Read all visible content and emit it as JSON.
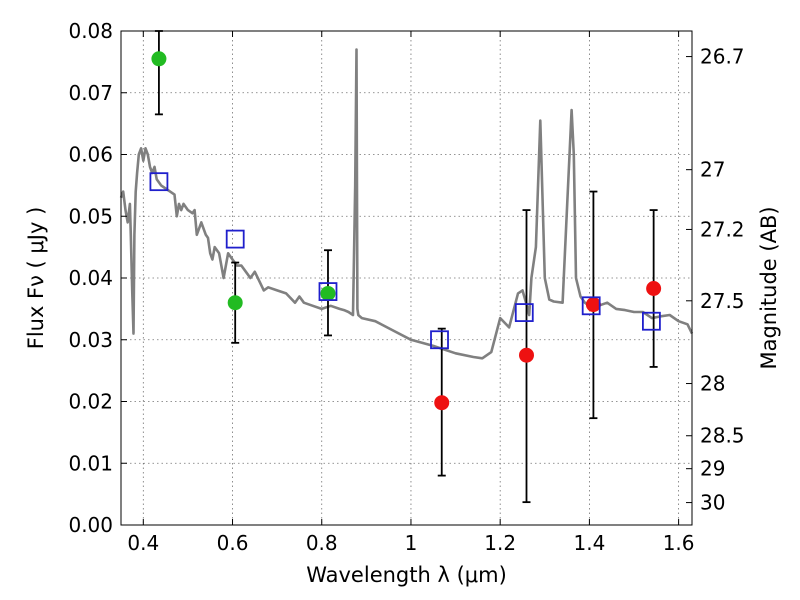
{
  "chart_data": {
    "type": "scatter",
    "title": "",
    "xlabel": "Wavelength  λ (μm)",
    "ylabel": "Flux  Fν ( μJy )",
    "y2label": "Magnitude (AB)",
    "xlim": [
      0.35,
      1.63
    ],
    "ylim": [
      0.0,
      0.08
    ],
    "grid": true,
    "x_ticks": [
      0.4,
      0.6,
      0.8,
      1.0,
      1.2,
      1.4,
      1.6
    ],
    "x_tick_labels": [
      "0.4",
      "0.6",
      "0.8",
      "1",
      "1.2",
      "1.4",
      "1.6"
    ],
    "y_ticks": [
      0.0,
      0.01,
      0.02,
      0.03,
      0.04,
      0.05,
      0.06,
      0.07,
      0.08
    ],
    "y_tick_labels": [
      "0.00",
      "0.01",
      "0.02",
      "0.03",
      "0.04",
      "0.05",
      "0.06",
      "0.07",
      "0.08"
    ],
    "y2_ticks": [
      26.7,
      27.0,
      27.2,
      27.5,
      28.0,
      28.5,
      29.0,
      30.0
    ],
    "y2_tick_labels": [
      "26.7",
      "27",
      "27.2",
      "27.5",
      "28",
      "28.5",
      "29",
      "30"
    ],
    "model_spectrum": {
      "color": "#808080",
      "x": [
        0.35,
        0.355,
        0.36,
        0.365,
        0.37,
        0.372,
        0.375,
        0.378,
        0.38,
        0.383,
        0.386,
        0.39,
        0.395,
        0.4,
        0.405,
        0.41,
        0.415,
        0.42,
        0.425,
        0.43,
        0.44,
        0.45,
        0.46,
        0.47,
        0.475,
        0.48,
        0.485,
        0.49,
        0.5,
        0.51,
        0.515,
        0.52,
        0.53,
        0.54,
        0.545,
        0.55,
        0.555,
        0.56,
        0.57,
        0.58,
        0.59,
        0.6,
        0.61,
        0.62,
        0.63,
        0.64,
        0.65,
        0.66,
        0.67,
        0.68,
        0.7,
        0.72,
        0.74,
        0.75,
        0.76,
        0.78,
        0.8,
        0.82,
        0.84,
        0.85,
        0.86,
        0.87,
        0.875,
        0.878,
        0.88,
        0.882,
        0.885,
        0.89,
        0.92,
        0.96,
        1.0,
        1.05,
        1.1,
        1.14,
        1.16,
        1.18,
        1.2,
        1.22,
        1.24,
        1.25,
        1.26,
        1.265,
        1.27,
        1.28,
        1.29,
        1.3,
        1.31,
        1.32,
        1.34,
        1.36,
        1.365,
        1.37,
        1.38,
        1.39,
        1.4,
        1.42,
        1.44,
        1.46,
        1.48,
        1.5,
        1.52,
        1.54,
        1.56,
        1.58,
        1.6,
        1.62,
        1.63
      ],
      "y": [
        0.053,
        0.054,
        0.051,
        0.049,
        0.052,
        0.047,
        0.038,
        0.031,
        0.047,
        0.054,
        0.057,
        0.06,
        0.061,
        0.059,
        0.061,
        0.06,
        0.058,
        0.057,
        0.058,
        0.056,
        0.055,
        0.0545,
        0.054,
        0.0535,
        0.05,
        0.052,
        0.051,
        0.052,
        0.051,
        0.0505,
        0.051,
        0.047,
        0.049,
        0.047,
        0.0465,
        0.044,
        0.043,
        0.045,
        0.044,
        0.04,
        0.044,
        0.043,
        0.042,
        0.042,
        0.041,
        0.04,
        0.041,
        0.0395,
        0.038,
        0.0385,
        0.038,
        0.0375,
        0.036,
        0.037,
        0.036,
        0.0355,
        0.035,
        0.0355,
        0.035,
        0.0348,
        0.0345,
        0.034,
        0.055,
        0.077,
        0.035,
        0.034,
        0.0338,
        0.0335,
        0.033,
        0.0315,
        0.03,
        0.029,
        0.0278,
        0.0272,
        0.027,
        0.028,
        0.0335,
        0.032,
        0.0375,
        0.038,
        0.0355,
        0.034,
        0.04,
        0.045,
        0.0655,
        0.04,
        0.0365,
        0.0362,
        0.036,
        0.0672,
        0.06,
        0.04,
        0.037,
        0.036,
        0.0355,
        0.0355,
        0.036,
        0.035,
        0.0348,
        0.0345,
        0.0345,
        0.0335,
        0.0338,
        0.034,
        0.033,
        0.0325,
        0.031
      ]
    },
    "series": [
      {
        "marker": "circle",
        "color": "#22bb22",
        "points": [
          {
            "x": 0.435,
            "y": 0.0755,
            "err_lo": 0.0665,
            "err_hi": 0.08
          },
          {
            "x": 0.606,
            "y": 0.036,
            "err_lo": 0.0295,
            "err_hi": 0.0425
          },
          {
            "x": 0.814,
            "y": 0.0375,
            "err_lo": 0.0307,
            "err_hi": 0.0445
          }
        ]
      },
      {
        "marker": "circle",
        "color": "#ee1111",
        "points": [
          {
            "x": 1.069,
            "y": 0.0198,
            "err_lo": 0.008,
            "err_hi": 0.0318
          },
          {
            "x": 1.259,
            "y": 0.0275,
            "err_lo": 0.0037,
            "err_hi": 0.051
          },
          {
            "x": 1.409,
            "y": 0.0357,
            "err_lo": 0.0173,
            "err_hi": 0.054
          },
          {
            "x": 1.544,
            "y": 0.0383,
            "err_lo": 0.0256,
            "err_hi": 0.051
          }
        ]
      },
      {
        "marker": "open-square",
        "color": "#1f1fcc",
        "points": [
          {
            "x": 0.435,
            "y": 0.0556
          },
          {
            "x": 0.606,
            "y": 0.0463
          },
          {
            "x": 0.814,
            "y": 0.0378
          },
          {
            "x": 1.064,
            "y": 0.03
          },
          {
            "x": 1.254,
            "y": 0.0344
          },
          {
            "x": 1.404,
            "y": 0.0355
          },
          {
            "x": 1.539,
            "y": 0.033
          }
        ]
      }
    ]
  }
}
